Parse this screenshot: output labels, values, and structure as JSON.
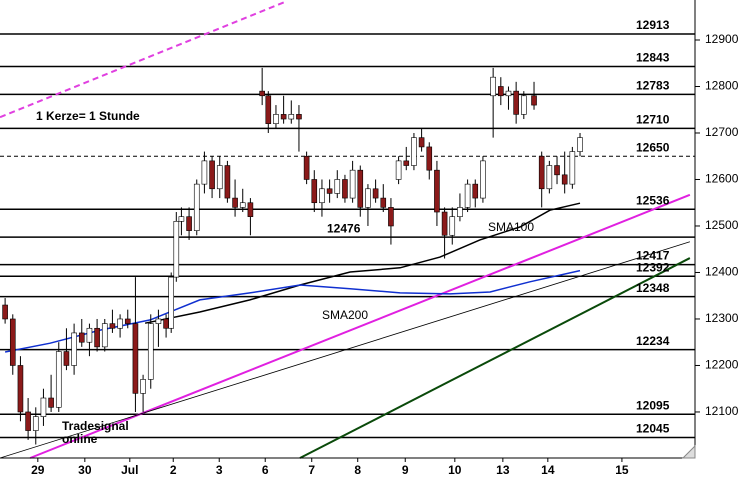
{
  "chart_data": {
    "type": "candlestick",
    "annotations": [
      "1 Kerze= 1 Stunde",
      "SMA100",
      "SMA200",
      "Tradesignal",
      "online"
    ],
    "xlim": [
      0,
      136
    ],
    "xticks": [
      {
        "value": 7.4,
        "label": "29"
      },
      {
        "value": 16.6,
        "label": "30"
      },
      {
        "value": 25.4,
        "label": "Jul"
      },
      {
        "value": 33.9,
        "label": "2"
      },
      {
        "value": 42.9,
        "label": "3"
      },
      {
        "value": 51.9,
        "label": "6"
      },
      {
        "value": 61,
        "label": "7"
      },
      {
        "value": 70,
        "label": "8"
      },
      {
        "value": 79.3,
        "label": "9"
      },
      {
        "value": 89,
        "label": "10"
      },
      {
        "value": 98.4,
        "label": "13"
      },
      {
        "value": 107.2,
        "label": "14"
      },
      {
        "value": 121.7,
        "label": "15"
      }
    ],
    "ylim": [
      12001,
      12986
    ],
    "yticks": [
      12100,
      12200,
      12300,
      12400,
      12500,
      12600,
      12700,
      12800,
      12900
    ],
    "up_color": "#ffffff",
    "down_color": "#8b1a1a",
    "x": [
      1,
      2.5,
      4,
      5.5,
      7,
      8.5,
      10,
      11.5,
      13,
      14.5,
      16,
      17.5,
      19,
      20.5,
      22,
      23.5,
      25,
      26.5,
      28,
      29.5,
      31,
      32.5,
      33.5,
      34.5,
      35.5,
      37,
      38.5,
      40,
      41.5,
      43,
      44.5,
      46,
      47.5,
      49,
      51.3,
      52.5,
      54,
      55.5,
      57,
      58.5,
      60,
      61.5,
      63,
      64.5,
      66,
      67.5,
      69,
      70.5,
      72,
      73.5,
      75,
      76.5,
      78,
      79.5,
      81,
      82.5,
      84,
      85.5,
      87,
      88.5,
      90,
      91.5,
      93,
      94.5,
      96.5,
      98,
      99.5,
      101,
      102.5,
      104.5,
      106,
      107.5,
      109,
      110.5,
      112,
      113.5
    ],
    "open": [
      12330,
      12300,
      12200,
      12100,
      12060,
      12090,
      12130,
      12110,
      12230,
      12200,
      12270,
      12250,
      12280,
      12240,
      12290,
      12280,
      12300,
      12290,
      12140,
      12170,
      12290,
      12300,
      12280,
      12390,
      12510,
      12520,
      12490,
      12590,
      12640,
      12580,
      12630,
      12560,
      12540,
      12550,
      12790,
      12780,
      12720,
      12740,
      12730,
      12740,
      12650,
      12600,
      12550,
      12580,
      12570,
      12600,
      12560,
      12620,
      12540,
      12580,
      12560,
      12540,
      12600,
      12640,
      12630,
      12690,
      12670,
      12620,
      12530,
      12480,
      12520,
      12540,
      12590,
      12560,
      12780,
      12800,
      12780,
      12790,
      12740,
      12780,
      12650,
      12580,
      12630,
      12610,
      12590,
      12660
    ],
    "high": [
      12345,
      12310,
      12220,
      12130,
      12110,
      12150,
      12180,
      12250,
      12280,
      12290,
      12300,
      12290,
      12300,
      12300,
      12320,
      12310,
      12320,
      12390,
      12180,
      12310,
      12320,
      12310,
      12400,
      12530,
      12540,
      12540,
      12600,
      12660,
      12650,
      12650,
      12640,
      12600,
      12580,
      12560,
      12840,
      12790,
      12760,
      12780,
      12770,
      12760,
      12660,
      12620,
      12600,
      12600,
      12620,
      12610,
      12640,
      12630,
      12590,
      12600,
      12590,
      12560,
      12650,
      12670,
      12700,
      12710,
      12680,
      12640,
      12540,
      12540,
      12570,
      12600,
      12600,
      12650,
      12840,
      12820,
      12800,
      12810,
      12790,
      12810,
      12660,
      12640,
      12650,
      12660,
      12670,
      12700
    ],
    "low": [
      12290,
      12180,
      12080,
      12040,
      12030,
      12070,
      12100,
      12100,
      12190,
      12180,
      12240,
      12220,
      12230,
      12230,
      12270,
      12260,
      12280,
      12100,
      12100,
      12150,
      12240,
      12260,
      12270,
      12380,
      12480,
      12470,
      12480,
      12570,
      12560,
      12560,
      12550,
      12520,
      12530,
      12480,
      12760,
      12700,
      12710,
      12720,
      12720,
      12660,
      12590,
      12530,
      12520,
      12550,
      12560,
      12550,
      12550,
      12520,
      12500,
      12550,
      12530,
      12460,
      12590,
      12620,
      12620,
      12660,
      12600,
      12500,
      12430,
      12460,
      12510,
      12530,
      12540,
      12550,
      12690,
      12760,
      12750,
      12720,
      12730,
      12750,
      12540,
      12570,
      12590,
      12570,
      12580,
      12650
    ],
    "close": [
      12300,
      12200,
      12100,
      12060,
      12090,
      12130,
      12110,
      12230,
      12200,
      12270,
      12250,
      12280,
      12240,
      12290,
      12280,
      12300,
      12290,
      12140,
      12170,
      12290,
      12300,
      12280,
      12390,
      12510,
      12520,
      12490,
      12590,
      12640,
      12580,
      12630,
      12560,
      12540,
      12550,
      12520,
      12780,
      12720,
      12740,
      12730,
      12740,
      12730,
      12600,
      12550,
      12580,
      12570,
      12600,
      12560,
      12620,
      12540,
      12580,
      12560,
      12540,
      12500,
      12640,
      12630,
      12690,
      12670,
      12620,
      12530,
      12480,
      12520,
      12540,
      12590,
      12560,
      12640,
      12820,
      12780,
      12790,
      12740,
      12780,
      12760,
      12580,
      12630,
      12610,
      12590,
      12660,
      12690
    ],
    "series": [
      {
        "name": "SMA100",
        "type": "line",
        "color": "#000000",
        "x": [
          28.4,
          39.1,
          48.9,
          58.7,
          68.5,
          78.3,
          86.1,
          93.9,
          101.8,
          107.6,
          113.5
        ],
        "values": [
          12291,
          12315,
          12341,
          12373,
          12401,
          12410,
          12433,
          12470,
          12498,
          12534,
          12549
        ]
      },
      {
        "name": "SMA200",
        "type": "line",
        "color": "#1030d0",
        "x": [
          1,
          9.8,
          19.6,
          29.4,
          39.1,
          48.9,
          58.7,
          68.5,
          78.3,
          88.1,
          95.9,
          103.7,
          113.5
        ],
        "values": [
          12229,
          12248,
          12276,
          12298,
          12341,
          12356,
          12373,
          12365,
          12356,
          12354,
          12358,
          12380,
          12404
        ]
      }
    ],
    "trendlines": [
      {
        "x": [
          0,
          55.8
        ],
        "values": [
          12734,
          12982
        ],
        "color": "#e040e0",
        "dashed": true
      },
      {
        "x": [
          5.9,
          135
        ],
        "values": [
          12001,
          12567
        ],
        "color": "#e020e0",
        "dashed": false
      },
      {
        "x": [
          0,
          135
        ],
        "values": [
          12001,
          12466
        ],
        "color": "#000000",
        "dashed": false
      },
      {
        "x": [
          58.7,
          135
        ],
        "values": [
          12001,
          12431
        ],
        "color": "#0a4a0a",
        "dashed": false
      }
    ],
    "levels": [
      {
        "value": 12913,
        "dashed": false
      },
      {
        "value": 12843,
        "dashed": false
      },
      {
        "value": 12783,
        "dashed": false
      },
      {
        "value": 12710,
        "dashed": false
      },
      {
        "value": 12650,
        "dashed": true
      },
      {
        "value": 12536,
        "dashed": false
      },
      {
        "value": 12476,
        "dashed": false
      },
      {
        "value": 12417,
        "dashed": false
      },
      {
        "value": 12392,
        "dashed": false
      },
      {
        "value": 12348,
        "dashed": false
      },
      {
        "value": 12234,
        "dashed": false
      },
      {
        "value": 12095,
        "dashed": false
      },
      {
        "value": 12045,
        "dashed": false
      }
    ]
  }
}
